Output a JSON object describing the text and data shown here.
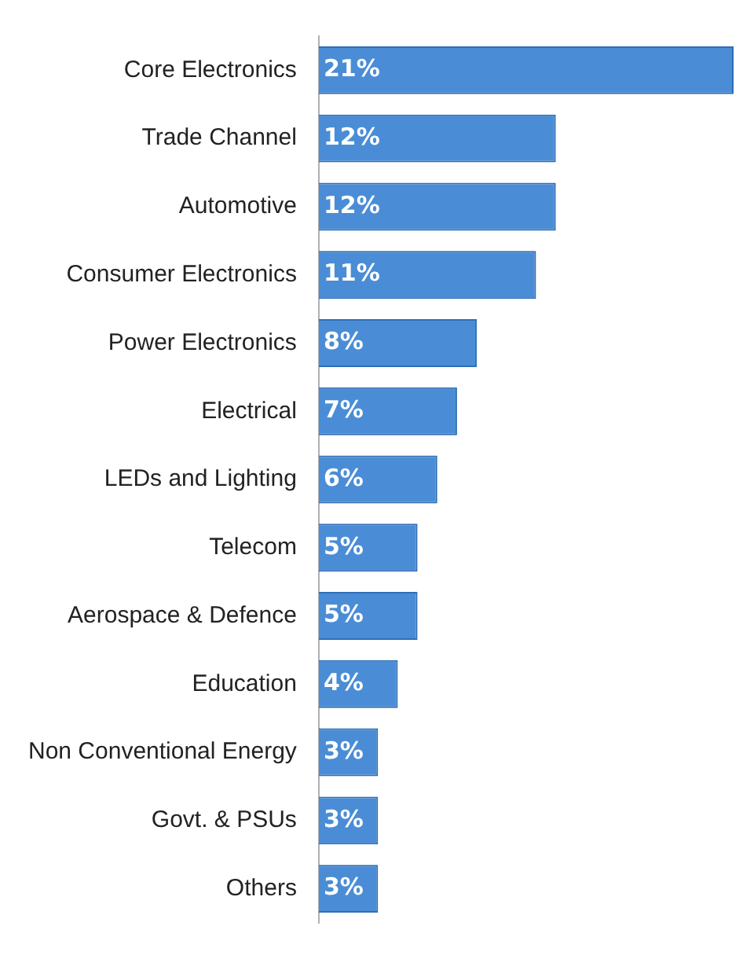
{
  "chart_data": {
    "type": "bar",
    "orientation": "horizontal",
    "categories": [
      "Core Electronics",
      "Trade Channel",
      "Automotive",
      "Consumer Electronics",
      "Power Electronics",
      "Electrical",
      "LEDs and Lighting",
      "Telecom",
      "Aerospace & Defence",
      "Education",
      "Non Conventional Energy",
      "Govt. & PSUs",
      "Others"
    ],
    "values": [
      21,
      12,
      12,
      11,
      8,
      7,
      6,
      5,
      5,
      4,
      3,
      3,
      3
    ],
    "value_labels": [
      "21%",
      "12%",
      "12%",
      "11%",
      "8%",
      "7%",
      "6%",
      "5%",
      "5%",
      "4%",
      "3%",
      "3%",
      "3%"
    ],
    "color": "#4a8dd6",
    "xlim": [
      0,
      21
    ],
    "tick_labels": "y",
    "legend": false
  }
}
